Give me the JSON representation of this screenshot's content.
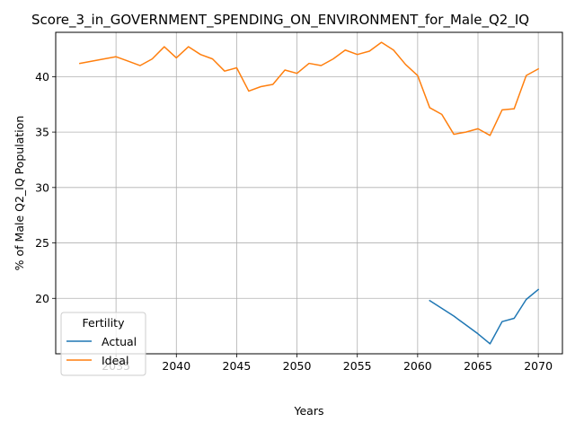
{
  "chart_data": {
    "type": "line",
    "title": "Score_3_in_GOVERNMENT_SPENDING_ON_ENVIRONMENT_for_Male_Q2_IQ",
    "xlabel": "Years",
    "ylabel": "% of Male Q2_IQ Population",
    "xlim": [
      2030.0,
      2072.0
    ],
    "ylim": [
      15.0,
      44.0
    ],
    "xticks": [
      2035,
      2040,
      2045,
      2050,
      2055,
      2060,
      2065,
      2070
    ],
    "yticks": [
      20,
      25,
      30,
      35,
      40
    ],
    "grid": true,
    "legend": {
      "title": "Fertility",
      "position": "lower-left"
    },
    "series": [
      {
        "name": "Actual",
        "color": "#1f77b4",
        "x": [
          2061,
          2062,
          2063,
          2064,
          2065,
          2066,
          2067,
          2068,
          2069,
          2070
        ],
        "y": [
          19.8,
          19.1,
          18.4,
          17.6,
          16.8,
          15.9,
          17.9,
          18.2,
          19.9,
          20.8
        ]
      },
      {
        "name": "Ideal",
        "color": "#ff7f0e",
        "x": [
          2032,
          2033,
          2034,
          2035,
          2036,
          2037,
          2038,
          2039,
          2040,
          2041,
          2042,
          2043,
          2044,
          2045,
          2046,
          2047,
          2048,
          2049,
          2050,
          2051,
          2052,
          2053,
          2054,
          2055,
          2056,
          2057,
          2058,
          2059,
          2060,
          2061,
          2062,
          2063,
          2064,
          2065,
          2066,
          2067,
          2068,
          2069,
          2070
        ],
        "y": [
          41.2,
          41.4,
          41.6,
          41.8,
          41.4,
          41.0,
          41.6,
          42.7,
          41.7,
          42.7,
          42.0,
          41.6,
          40.5,
          40.8,
          38.7,
          39.1,
          39.3,
          40.6,
          40.3,
          41.2,
          41.0,
          41.6,
          42.4,
          42.0,
          42.3,
          43.1,
          42.4,
          41.1,
          40.1,
          37.2,
          36.6,
          34.8,
          35.0,
          35.3,
          34.7,
          37.0,
          37.1,
          40.1,
          40.7
        ]
      }
    ]
  }
}
